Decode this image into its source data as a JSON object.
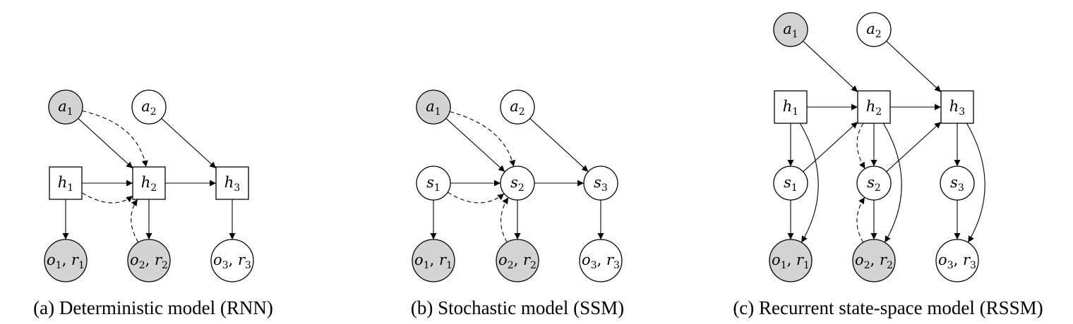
{
  "colors": {
    "observed_fill": "#d3d3d3",
    "latent_fill": "#ffffff",
    "stroke": "#000000"
  },
  "panels": [
    {
      "id": "rnn",
      "caption": "(a) Deterministic model (RNN)",
      "nodes": [
        {
          "id": "a1",
          "name": "action-node-a1",
          "terms": [
            {
              "v": "a",
              "s": "1"
            }
          ],
          "shape": "circle",
          "observed": true
        },
        {
          "id": "a2",
          "name": "action-node-a2",
          "terms": [
            {
              "v": "a",
              "s": "2"
            }
          ],
          "shape": "circle",
          "observed": false
        },
        {
          "id": "h1",
          "name": "deterministic-state-h1",
          "terms": [
            {
              "v": "h",
              "s": "1"
            }
          ],
          "shape": "square",
          "observed": false
        },
        {
          "id": "h2",
          "name": "deterministic-state-h2",
          "terms": [
            {
              "v": "h",
              "s": "2"
            }
          ],
          "shape": "square",
          "observed": false
        },
        {
          "id": "h3",
          "name": "deterministic-state-h3",
          "terms": [
            {
              "v": "h",
              "s": "3"
            }
          ],
          "shape": "square",
          "observed": false
        },
        {
          "id": "o1",
          "name": "observation-node-o1-r1",
          "terms": [
            {
              "v": "o",
              "s": "1"
            },
            {
              "v": "r",
              "s": "1"
            }
          ],
          "shape": "circle",
          "observed": true
        },
        {
          "id": "o2",
          "name": "observation-node-o2-r2",
          "terms": [
            {
              "v": "o",
              "s": "2"
            },
            {
              "v": "r",
              "s": "2"
            }
          ],
          "shape": "circle",
          "observed": true
        },
        {
          "id": "o3",
          "name": "observation-node-o3-r3",
          "terms": [
            {
              "v": "o",
              "s": "3"
            },
            {
              "v": "r",
              "s": "3"
            }
          ],
          "shape": "circle",
          "observed": false
        }
      ],
      "edges": [
        {
          "from": "a1",
          "to": "h2",
          "style": "solid"
        },
        {
          "from": "a2",
          "to": "h3",
          "style": "solid"
        },
        {
          "from": "h1",
          "to": "h2",
          "style": "solid"
        },
        {
          "from": "h2",
          "to": "h3",
          "style": "solid"
        },
        {
          "from": "h1",
          "to": "o1",
          "style": "solid"
        },
        {
          "from": "h2",
          "to": "o2",
          "style": "solid"
        },
        {
          "from": "h3",
          "to": "o3",
          "style": "solid"
        },
        {
          "from": "a1",
          "to": "h2",
          "style": "dashed"
        },
        {
          "from": "h1",
          "to": "h2",
          "style": "dashed"
        },
        {
          "from": "o2",
          "to": "h2",
          "style": "dashed"
        }
      ]
    },
    {
      "id": "ssm",
      "caption": "(b) Stochastic model (SSM)",
      "nodes": [
        {
          "id": "a1",
          "name": "action-node-a1",
          "terms": [
            {
              "v": "a",
              "s": "1"
            }
          ],
          "shape": "circle",
          "observed": true
        },
        {
          "id": "a2",
          "name": "action-node-a2",
          "terms": [
            {
              "v": "a",
              "s": "2"
            }
          ],
          "shape": "circle",
          "observed": false
        },
        {
          "id": "s1",
          "name": "stochastic-state-s1",
          "terms": [
            {
              "v": "s",
              "s": "1"
            }
          ],
          "shape": "circle",
          "observed": false
        },
        {
          "id": "s2",
          "name": "stochastic-state-s2",
          "terms": [
            {
              "v": "s",
              "s": "2"
            }
          ],
          "shape": "circle",
          "observed": false
        },
        {
          "id": "s3",
          "name": "stochastic-state-s3",
          "terms": [
            {
              "v": "s",
              "s": "3"
            }
          ],
          "shape": "circle",
          "observed": false
        },
        {
          "id": "o1",
          "name": "observation-node-o1-r1",
          "terms": [
            {
              "v": "o",
              "s": "1"
            },
            {
              "v": "r",
              "s": "1"
            }
          ],
          "shape": "circle",
          "observed": true
        },
        {
          "id": "o2",
          "name": "observation-node-o2-r2",
          "terms": [
            {
              "v": "o",
              "s": "2"
            },
            {
              "v": "r",
              "s": "2"
            }
          ],
          "shape": "circle",
          "observed": true
        },
        {
          "id": "o3",
          "name": "observation-node-o3-r3",
          "terms": [
            {
              "v": "o",
              "s": "3"
            },
            {
              "v": "r",
              "s": "3"
            }
          ],
          "shape": "circle",
          "observed": false
        }
      ],
      "edges": [
        {
          "from": "a1",
          "to": "s2",
          "style": "solid"
        },
        {
          "from": "a2",
          "to": "s3",
          "style": "solid"
        },
        {
          "from": "s1",
          "to": "s2",
          "style": "solid"
        },
        {
          "from": "s2",
          "to": "s3",
          "style": "solid"
        },
        {
          "from": "s1",
          "to": "o1",
          "style": "solid"
        },
        {
          "from": "s2",
          "to": "o2",
          "style": "solid"
        },
        {
          "from": "s3",
          "to": "o3",
          "style": "solid"
        },
        {
          "from": "a1",
          "to": "s2",
          "style": "dashed"
        },
        {
          "from": "s1",
          "to": "s2",
          "style": "dashed"
        },
        {
          "from": "o2",
          "to": "s2",
          "style": "dashed"
        }
      ]
    },
    {
      "id": "rssm",
      "caption": "(c) Recurrent state-space model (RSSM)",
      "nodes": [
        {
          "id": "a1",
          "name": "action-node-a1",
          "terms": [
            {
              "v": "a",
              "s": "1"
            }
          ],
          "shape": "circle",
          "observed": true
        },
        {
          "id": "a2",
          "name": "action-node-a2",
          "terms": [
            {
              "v": "a",
              "s": "2"
            }
          ],
          "shape": "circle",
          "observed": false
        },
        {
          "id": "h1",
          "name": "deterministic-state-h1",
          "terms": [
            {
              "v": "h",
              "s": "1"
            }
          ],
          "shape": "square",
          "observed": false
        },
        {
          "id": "h2",
          "name": "deterministic-state-h2",
          "terms": [
            {
              "v": "h",
              "s": "2"
            }
          ],
          "shape": "square",
          "observed": false
        },
        {
          "id": "h3",
          "name": "deterministic-state-h3",
          "terms": [
            {
              "v": "h",
              "s": "3"
            }
          ],
          "shape": "square",
          "observed": false
        },
        {
          "id": "s1",
          "name": "stochastic-state-s1",
          "terms": [
            {
              "v": "s",
              "s": "1"
            }
          ],
          "shape": "circle",
          "observed": false
        },
        {
          "id": "s2",
          "name": "stochastic-state-s2",
          "terms": [
            {
              "v": "s",
              "s": "2"
            }
          ],
          "shape": "circle",
          "observed": false
        },
        {
          "id": "s3",
          "name": "stochastic-state-s3",
          "terms": [
            {
              "v": "s",
              "s": "3"
            }
          ],
          "shape": "circle",
          "observed": false
        },
        {
          "id": "o1",
          "name": "observation-node-o1-r1",
          "terms": [
            {
              "v": "o",
              "s": "1"
            },
            {
              "v": "r",
              "s": "1"
            }
          ],
          "shape": "circle",
          "observed": true
        },
        {
          "id": "o2",
          "name": "observation-node-o2-r2",
          "terms": [
            {
              "v": "o",
              "s": "2"
            },
            {
              "v": "r",
              "s": "2"
            }
          ],
          "shape": "circle",
          "observed": true
        },
        {
          "id": "o3",
          "name": "observation-node-o3-r3",
          "terms": [
            {
              "v": "o",
              "s": "3"
            },
            {
              "v": "r",
              "s": "3"
            }
          ],
          "shape": "circle",
          "observed": false
        }
      ],
      "edges": [
        {
          "from": "a1",
          "to": "h2",
          "style": "solid"
        },
        {
          "from": "a2",
          "to": "h3",
          "style": "solid"
        },
        {
          "from": "h1",
          "to": "h2",
          "style": "solid"
        },
        {
          "from": "h2",
          "to": "h3",
          "style": "solid"
        },
        {
          "from": "h1",
          "to": "s1",
          "style": "solid"
        },
        {
          "from": "h2",
          "to": "s2",
          "style": "solid"
        },
        {
          "from": "h3",
          "to": "s3",
          "style": "solid"
        },
        {
          "from": "s1",
          "to": "h2",
          "style": "solid"
        },
        {
          "from": "s2",
          "to": "h3",
          "style": "solid"
        },
        {
          "from": "s1",
          "to": "o1",
          "style": "solid"
        },
        {
          "from": "s2",
          "to": "o2",
          "style": "solid"
        },
        {
          "from": "s3",
          "to": "o3",
          "style": "solid"
        },
        {
          "from": "h1",
          "to": "o1",
          "style": "solid"
        },
        {
          "from": "h2",
          "to": "o2",
          "style": "solid"
        },
        {
          "from": "h3",
          "to": "o3",
          "style": "solid"
        },
        {
          "from": "h2",
          "to": "s2",
          "style": "dashed"
        },
        {
          "from": "o2",
          "to": "s2",
          "style": "dashed"
        }
      ]
    }
  ]
}
